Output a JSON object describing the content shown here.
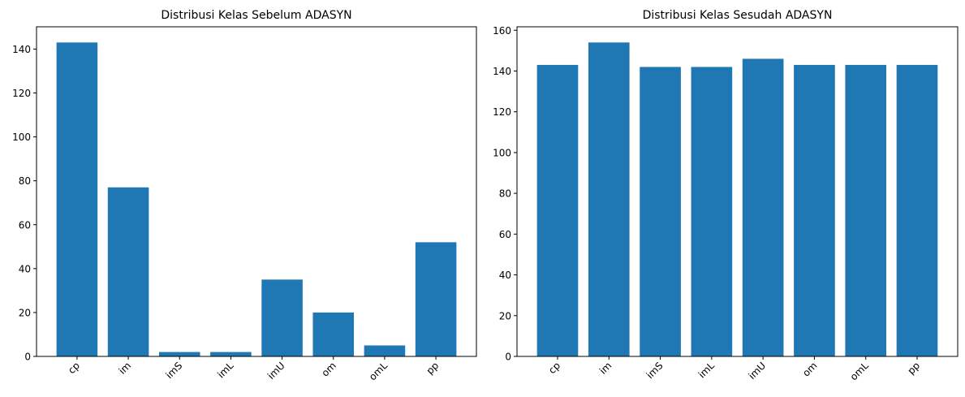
{
  "chart_data": [
    {
      "type": "bar",
      "title": "Distribusi Kelas Sebelum ADASYN",
      "xlabel": "",
      "ylabel": "",
      "categories": [
        "cp",
        "im",
        "imS",
        "imL",
        "imU",
        "om",
        "omL",
        "pp"
      ],
      "values": [
        143,
        77,
        2,
        2,
        35,
        20,
        5,
        52
      ],
      "ylim": [
        0,
        150.15
      ],
      "yticks": [
        0,
        20,
        40,
        60,
        80,
        100,
        120,
        140
      ],
      "color": "#1f77b4",
      "grid": false,
      "xtick_rotation": 45
    },
    {
      "type": "bar",
      "title": "Distribusi Kelas Sesudah ADASYN",
      "xlabel": "",
      "ylabel": "",
      "categories": [
        "cp",
        "im",
        "imS",
        "imL",
        "imU",
        "om",
        "omL",
        "pp"
      ],
      "values": [
        143,
        154,
        142,
        142,
        146,
        143,
        143,
        143
      ],
      "ylim": [
        0,
        161.7
      ],
      "yticks": [
        0,
        20,
        40,
        60,
        80,
        100,
        120,
        140,
        160
      ],
      "color": "#1f77b4",
      "grid": false,
      "xtick_rotation": 45
    }
  ]
}
